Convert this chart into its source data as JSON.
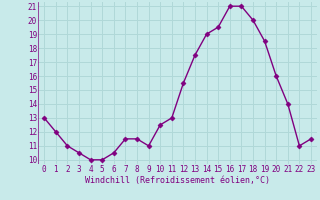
{
  "x": [
    0,
    1,
    2,
    3,
    4,
    5,
    6,
    7,
    8,
    9,
    10,
    11,
    12,
    13,
    14,
    15,
    16,
    17,
    18,
    19,
    20,
    21,
    22,
    23
  ],
  "y": [
    13,
    12,
    11,
    10.5,
    10,
    10,
    10.5,
    11.5,
    11.5,
    11,
    12.5,
    13,
    15.5,
    17.5,
    19,
    19.5,
    21,
    21,
    20,
    18.5,
    16,
    14,
    11,
    11.5
  ],
  "line_color": "#800080",
  "marker": "D",
  "marker_size": 2.5,
  "bg_color": "#c8eaea",
  "grid_color": "#b0d8d8",
  "xlabel": "Windchill (Refroidissement éolien,°C)",
  "xlabel_color": "#800080",
  "tick_color": "#800080",
  "ylim": [
    10,
    21
  ],
  "xlim": [
    -0.5,
    23.5
  ],
  "yticks": [
    10,
    11,
    12,
    13,
    14,
    15,
    16,
    17,
    18,
    19,
    20,
    21
  ],
  "xticks": [
    0,
    1,
    2,
    3,
    4,
    5,
    6,
    7,
    8,
    9,
    10,
    11,
    12,
    13,
    14,
    15,
    16,
    17,
    18,
    19,
    20,
    21,
    22,
    23
  ],
  "tick_fontsize": 5.5,
  "xlabel_fontsize": 6.0,
  "linewidth": 1.0
}
